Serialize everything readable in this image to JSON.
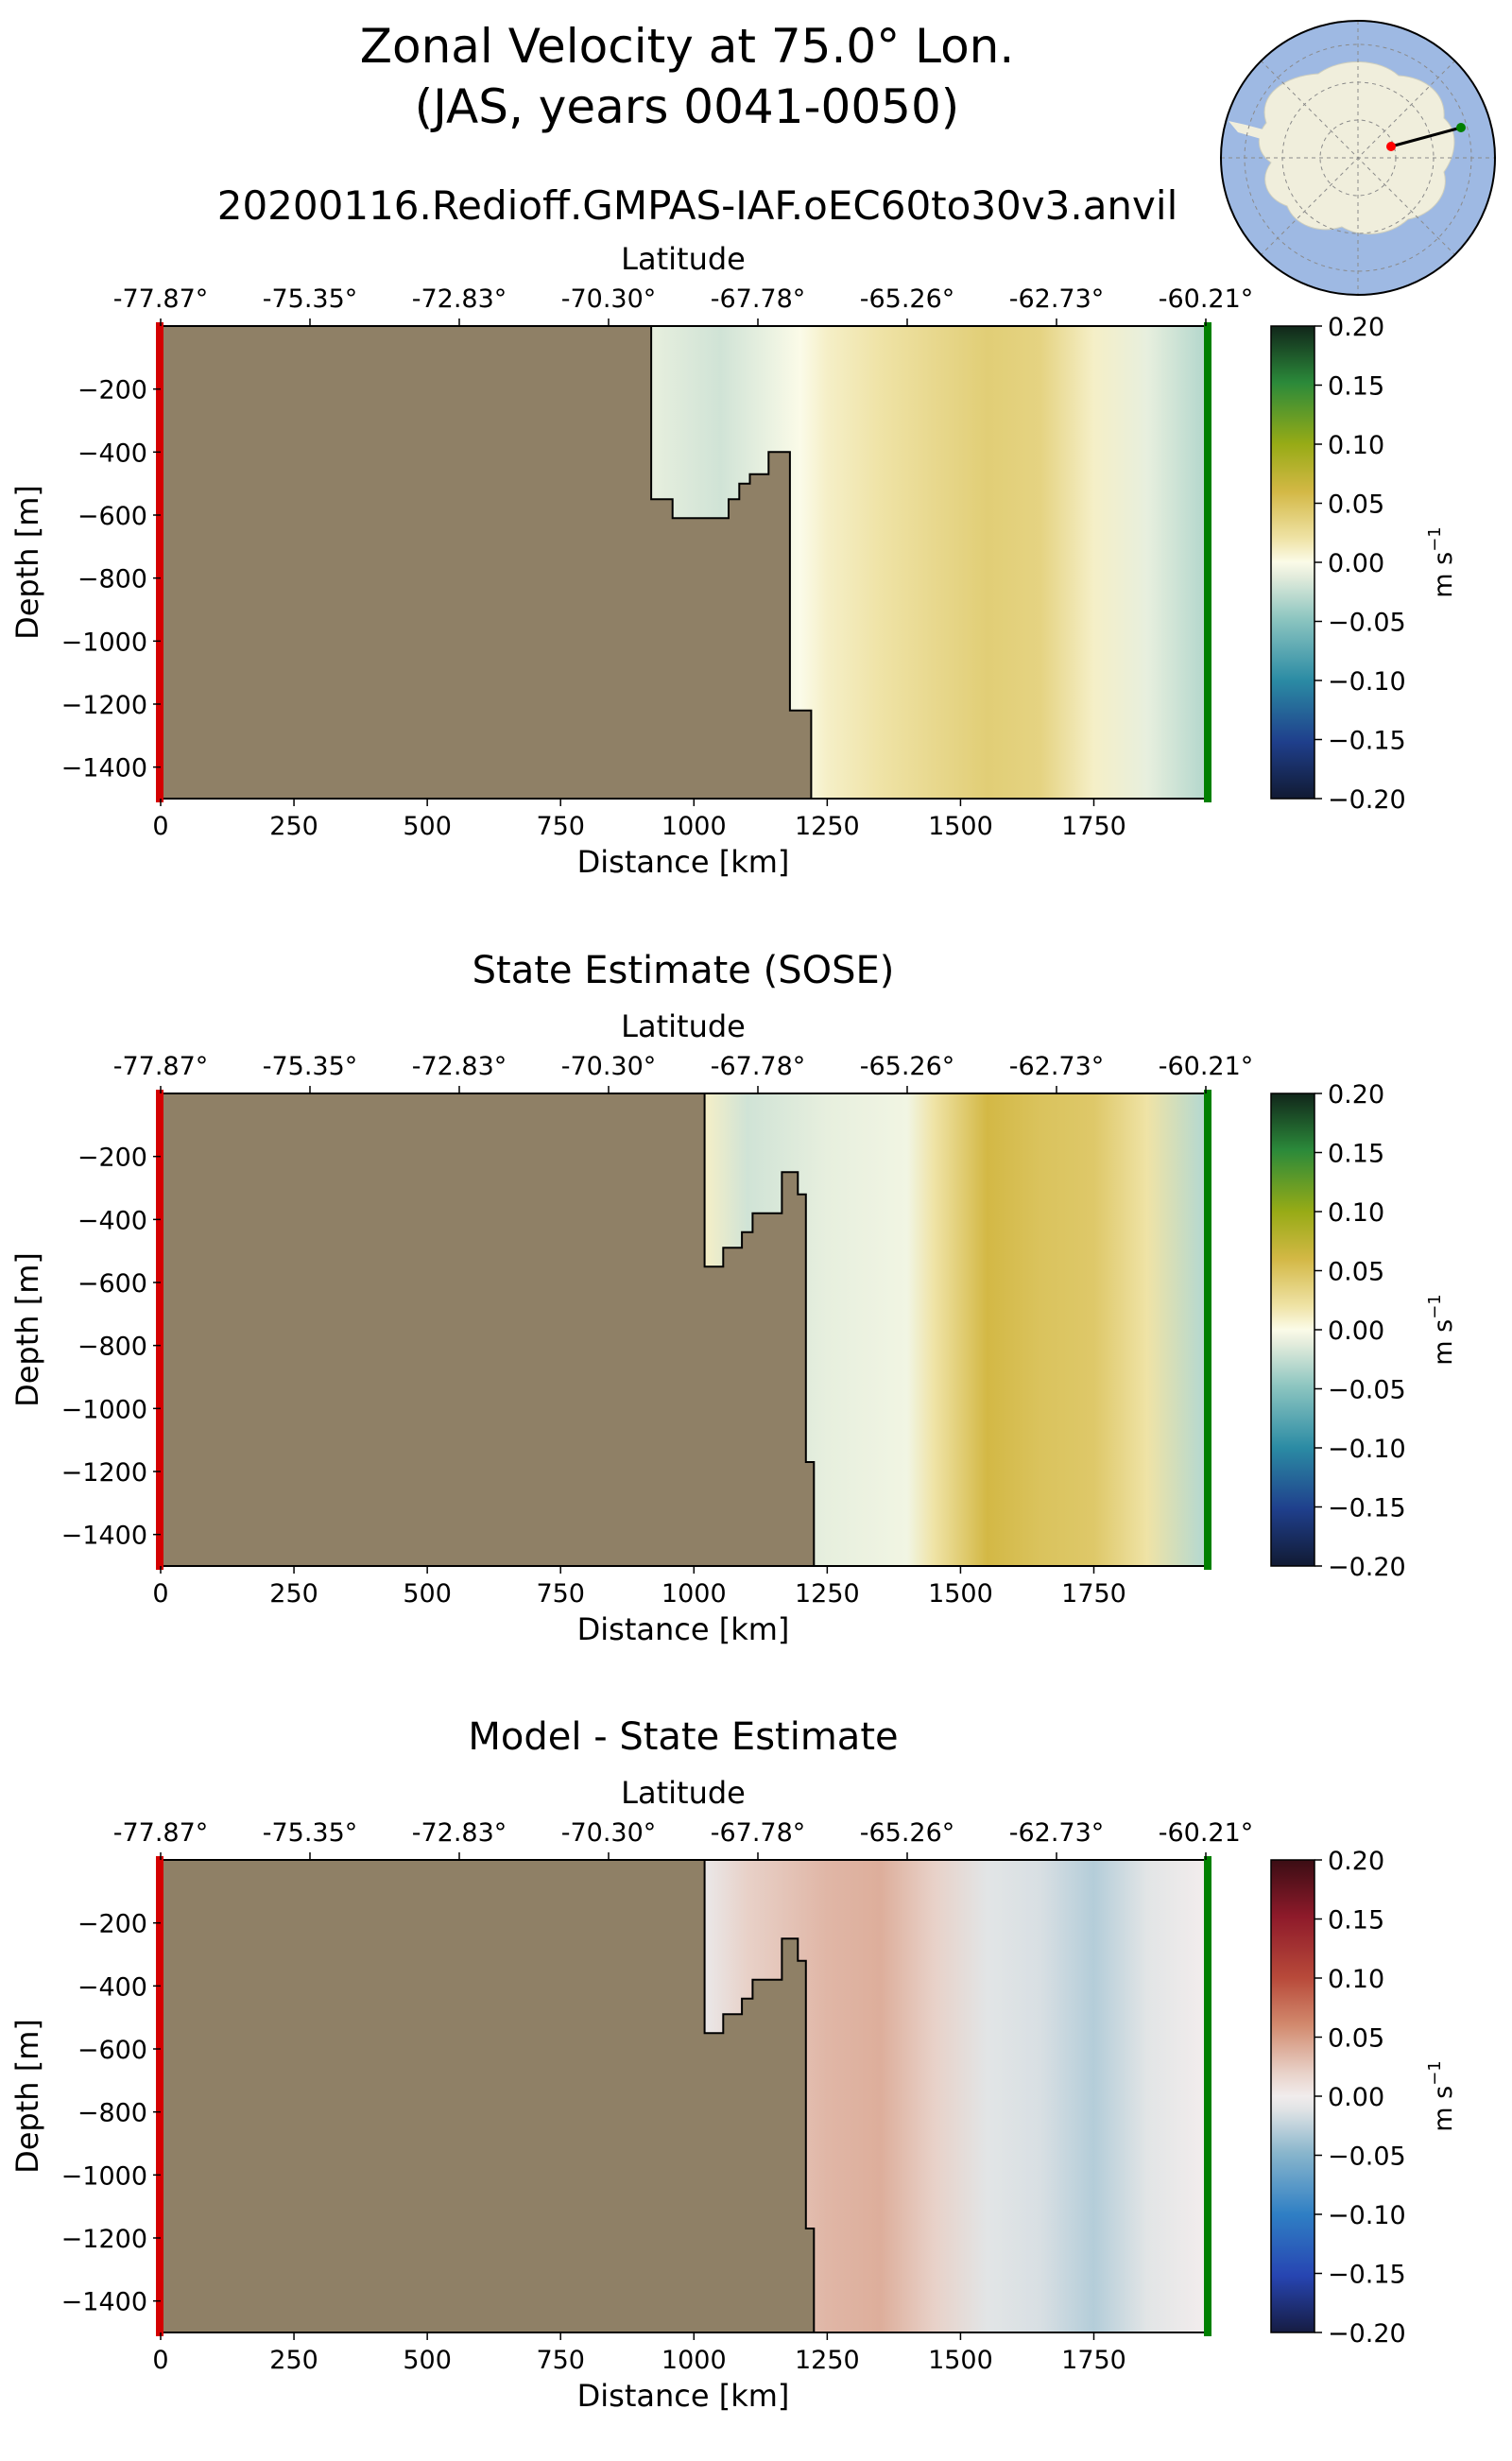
{
  "title_line1": "Zonal Velocity at 75.0° Lon.",
  "title_line2": "(JAS, years 0041-0050)",
  "subtitle": "20200116.Redioff.GMPAS-IAF.oEC60to30v3.anvil",
  "inset_map": {
    "description": "Antarctic locator map",
    "line_start_color": "#ff0000",
    "line_end_color": "#008000"
  },
  "colors": {
    "land": "#8f8066",
    "start_marker": "#d40000",
    "end_marker": "#008000"
  },
  "chart_data": [
    {
      "type": "heatmap",
      "title": "",
      "xlabel": "Distance [km]",
      "ylabel": "Depth [m]",
      "top_xlabel": "Latitude",
      "xlim": [
        0,
        1960
      ],
      "ylim": [
        -1500,
        0
      ],
      "x_ticks": [
        0,
        250,
        500,
        750,
        1000,
        1250,
        1500,
        1750
      ],
      "y_ticks": [
        -200,
        -400,
        -600,
        -800,
        -1000,
        -1200,
        -1400
      ],
      "lat_ticks": [
        "-77.87°",
        "-75.35°",
        "-72.83°",
        "-70.30°",
        "-67.78°",
        "-65.26°",
        "-62.73°",
        "-60.21°"
      ],
      "colorbar": {
        "label": "m s$^{-1}$",
        "label_text": "m s",
        "label_exp": "−1",
        "ticks": [
          "0.20",
          "0.15",
          "0.10",
          "0.05",
          "0.00",
          "−0.05",
          "−0.10",
          "−0.15",
          "−0.20"
        ],
        "vmin": -0.2,
        "vmax": 0.2,
        "cmap": "delta"
      },
      "bathymetry": [
        [
          0,
          0
        ],
        [
          920,
          0
        ],
        [
          920,
          -550
        ],
        [
          960,
          -550
        ],
        [
          960,
          -610
        ],
        [
          1065,
          -610
        ],
        [
          1065,
          -550
        ],
        [
          1085,
          -550
        ],
        [
          1085,
          -500
        ],
        [
          1105,
          -500
        ],
        [
          1105,
          -470
        ],
        [
          1140,
          -470
        ],
        [
          1140,
          -400
        ],
        [
          1180,
          -400
        ],
        [
          1180,
          -1220
        ],
        [
          1220,
          -1220
        ],
        [
          1220,
          -1500
        ],
        [
          0,
          -1500
        ]
      ],
      "velocity_profile_km": [
        [
          920,
          -0.01
        ],
        [
          1050,
          -0.02
        ],
        [
          1200,
          0.0
        ],
        [
          1250,
          0.01
        ],
        [
          1350,
          0.02
        ],
        [
          1450,
          0.03
        ],
        [
          1550,
          0.04
        ],
        [
          1650,
          0.035
        ],
        [
          1750,
          0.01
        ],
        [
          1850,
          -0.01
        ],
        [
          1950,
          -0.03
        ]
      ]
    },
    {
      "type": "heatmap",
      "title": "State Estimate (SOSE)",
      "xlabel": "Distance [km]",
      "ylabel": "Depth [m]",
      "top_xlabel": "Latitude",
      "xlim": [
        0,
        1960
      ],
      "ylim": [
        -1500,
        0
      ],
      "x_ticks": [
        0,
        250,
        500,
        750,
        1000,
        1250,
        1500,
        1750
      ],
      "y_ticks": [
        -200,
        -400,
        -600,
        -800,
        -1000,
        -1200,
        -1400
      ],
      "lat_ticks": [
        "-77.87°",
        "-75.35°",
        "-72.83°",
        "-70.30°",
        "-67.78°",
        "-65.26°",
        "-62.73°",
        "-60.21°"
      ],
      "colorbar": {
        "label": "m s$^{-1}$",
        "label_text": "m s",
        "label_exp": "−1",
        "ticks": [
          "0.20",
          "0.15",
          "0.10",
          "0.05",
          "0.00",
          "−0.05",
          "−0.10",
          "−0.15",
          "−0.20"
        ],
        "vmin": -0.2,
        "vmax": 0.2,
        "cmap": "delta"
      },
      "bathymetry": [
        [
          0,
          0
        ],
        [
          1020,
          0
        ],
        [
          1020,
          -550
        ],
        [
          1055,
          -550
        ],
        [
          1055,
          -490
        ],
        [
          1090,
          -490
        ],
        [
          1090,
          -440
        ],
        [
          1110,
          -440
        ],
        [
          1110,
          -380
        ],
        [
          1165,
          -380
        ],
        [
          1165,
          -250
        ],
        [
          1195,
          -250
        ],
        [
          1195,
          -320
        ],
        [
          1210,
          -320
        ],
        [
          1210,
          -1170
        ],
        [
          1225,
          -1170
        ],
        [
          1225,
          -1500
        ],
        [
          0,
          -1500
        ]
      ],
      "velocity_profile_km": [
        [
          1020,
          0.01
        ],
        [
          1100,
          -0.02
        ],
        [
          1250,
          -0.01
        ],
        [
          1400,
          -0.005
        ],
        [
          1450,
          0.02
        ],
        [
          1550,
          0.06
        ],
        [
          1650,
          0.05
        ],
        [
          1750,
          0.045
        ],
        [
          1850,
          0.02
        ],
        [
          1950,
          -0.03
        ]
      ]
    },
    {
      "type": "heatmap",
      "title": "Model - State Estimate",
      "xlabel": "Distance [km]",
      "ylabel": "Depth [m]",
      "top_xlabel": "Latitude",
      "xlim": [
        0,
        1960
      ],
      "ylim": [
        -1500,
        0
      ],
      "x_ticks": [
        0,
        250,
        500,
        750,
        1000,
        1250,
        1500,
        1750
      ],
      "y_ticks": [
        -200,
        -400,
        -600,
        -800,
        -1000,
        -1200,
        -1400
      ],
      "lat_ticks": [
        "-77.87°",
        "-75.35°",
        "-72.83°",
        "-70.30°",
        "-67.78°",
        "-65.26°",
        "-62.73°",
        "-60.21°"
      ],
      "colorbar": {
        "label": "m s$^{-1}$",
        "label_text": "m s",
        "label_exp": "−1",
        "ticks": [
          "0.20",
          "0.15",
          "0.10",
          "0.05",
          "0.00",
          "−0.05",
          "−0.10",
          "−0.15",
          "−0.20"
        ],
        "vmin": -0.2,
        "vmax": 0.2,
        "cmap": "balance"
      },
      "bathymetry": [
        [
          0,
          0
        ],
        [
          1020,
          0
        ],
        [
          1020,
          -550
        ],
        [
          1055,
          -550
        ],
        [
          1055,
          -490
        ],
        [
          1090,
          -490
        ],
        [
          1090,
          -440
        ],
        [
          1110,
          -440
        ],
        [
          1110,
          -380
        ],
        [
          1165,
          -380
        ],
        [
          1165,
          -250
        ],
        [
          1195,
          -250
        ],
        [
          1195,
          -320
        ],
        [
          1210,
          -320
        ],
        [
          1210,
          -1170
        ],
        [
          1225,
          -1170
        ],
        [
          1225,
          -1500
        ],
        [
          0,
          -1500
        ]
      ],
      "velocity_profile_km": [
        [
          1020,
          -0.005
        ],
        [
          1100,
          0.02
        ],
        [
          1250,
          0.035
        ],
        [
          1350,
          0.04
        ],
        [
          1450,
          0.02
        ],
        [
          1550,
          -0.01
        ],
        [
          1650,
          -0.015
        ],
        [
          1750,
          -0.03
        ],
        [
          1850,
          -0.01
        ],
        [
          1950,
          0.0
        ]
      ]
    }
  ]
}
